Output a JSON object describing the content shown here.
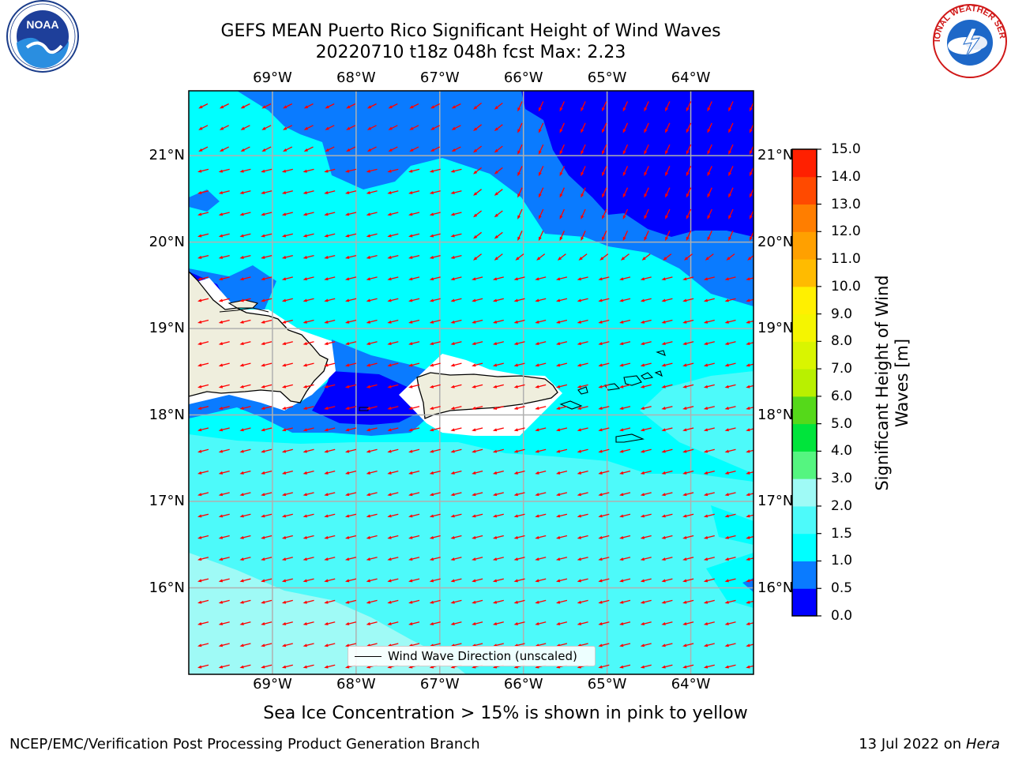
{
  "header": {
    "title_line1": "GEFS MEAN Puerto Rico Significant Height of Wind Waves",
    "title_line2": "20220710 t18z 048h fcst   Max: 2.23"
  },
  "map": {
    "lon_ticks": [
      "69°W",
      "68°W",
      "67°W",
      "66°W",
      "65°W",
      "64°W"
    ],
    "lat_ticks": [
      "21°N",
      "20°N",
      "19°N",
      "18°N",
      "17°N",
      "16°N"
    ],
    "lon_values": [
      -69,
      -68,
      -67,
      -66,
      -65,
      -64
    ],
    "lat_values": [
      21,
      20,
      19,
      18,
      17,
      16
    ],
    "lon_range": [
      -70.0,
      -63.25
    ],
    "lat_range": [
      15.0,
      21.75
    ],
    "arrow_color": "#ff0000",
    "land_color": "#efeedd",
    "grid": true
  },
  "colorbar": {
    "label": "Significant Height of Wind Waves [m]",
    "ticks": [
      "15.0",
      "14.0",
      "13.0",
      "12.0",
      "11.0",
      "10.0",
      "9.0",
      "8.0",
      "7.0",
      "6.0",
      "5.0",
      "4.0",
      "3.0",
      "2.0",
      "1.5",
      "1.0",
      "0.5",
      "0.0"
    ],
    "bins": [
      {
        "from": 0.0,
        "to": 0.5,
        "color": "#0000ff"
      },
      {
        "from": 0.5,
        "to": 1.0,
        "color": "#0a7bff"
      },
      {
        "from": 1.0,
        "to": 1.5,
        "color": "#00ffff"
      },
      {
        "from": 1.5,
        "to": 2.0,
        "color": "#4dfafa"
      },
      {
        "from": 2.0,
        "to": 3.0,
        "color": "#9ffaf6"
      },
      {
        "from": 3.0,
        "to": 4.0,
        "color": "#55f580"
      },
      {
        "from": 4.0,
        "to": 5.0,
        "color": "#00e43b"
      },
      {
        "from": 5.0,
        "to": 6.0,
        "color": "#55d91a"
      },
      {
        "from": 6.0,
        "to": 7.0,
        "color": "#b9f000"
      },
      {
        "from": 7.0,
        "to": 8.0,
        "color": "#d9f500"
      },
      {
        "from": 8.0,
        "to": 9.0,
        "color": "#f5f500"
      },
      {
        "from": 9.0,
        "to": 10.0,
        "color": "#fff000"
      },
      {
        "from": 10.0,
        "to": 11.0,
        "color": "#ffbb00"
      },
      {
        "from": 11.0,
        "to": 12.0,
        "color": "#ffa000"
      },
      {
        "from": 12.0,
        "to": 13.0,
        "color": "#ff7e00"
      },
      {
        "from": 13.0,
        "to": 14.0,
        "color": "#ff4a00"
      },
      {
        "from": 14.0,
        "to": 15.0,
        "color": "#ff2000"
      }
    ]
  },
  "legend": {
    "label": "Wind Wave Direction (unscaled)"
  },
  "subtitle": "Sea Ice Concentration > 15% is shown in pink to yellow",
  "footer": {
    "left": "NCEP/EMC/Verification Post Processing Product Generation Branch",
    "right_date": "13 Jul 2022 on ",
    "right_host": "Hera"
  },
  "logos": {
    "noaa": "noaa-logo",
    "nws": "national-weather-service-logo",
    "noaa_text": "NOAA",
    "nws_text": "NATIONAL WEATHER SERVICE"
  }
}
